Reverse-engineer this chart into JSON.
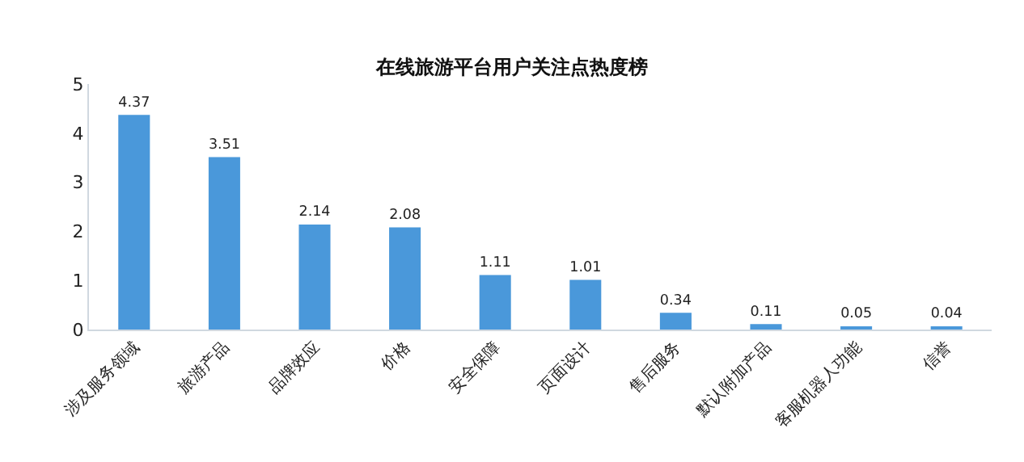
{
  "chart_data": {
    "type": "bar",
    "title": "在线旅游平台用户关注点热度榜",
    "categories": [
      "涉及服务领域",
      "旅游产品",
      "品牌效应",
      "价格",
      "安全保障",
      "页面设计",
      "售后服务",
      "默认附加产品",
      "客服机器人功能",
      "信誉"
    ],
    "values": [
      4.37,
      3.51,
      2.14,
      2.08,
      1.11,
      1.01,
      0.34,
      0.11,
      0.05,
      0.04
    ],
    "color": "#4a98da",
    "ylim": [
      0,
      5
    ],
    "yticks": [
      0,
      1,
      2,
      3,
      4,
      5
    ],
    "grid": false,
    "data_labels": true,
    "legend": false
  }
}
